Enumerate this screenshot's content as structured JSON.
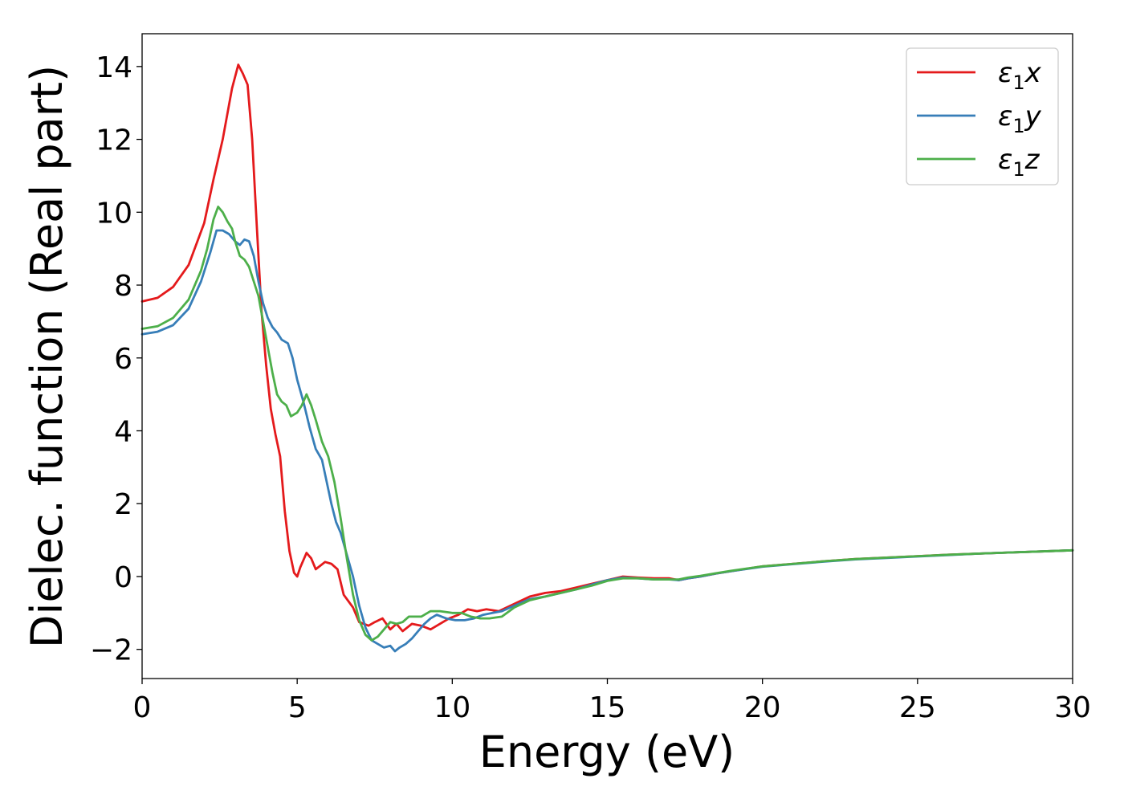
{
  "chart_data": {
    "type": "line",
    "xlabel": "Energy (eV)",
    "ylabel": "Dielec. function (Real part)",
    "xlim": [
      0,
      30
    ],
    "ylim": [
      -2.8,
      14.9
    ],
    "xticks": [
      0,
      5,
      10,
      15,
      20,
      25,
      30
    ],
    "yticks": [
      -2,
      0,
      2,
      4,
      6,
      8,
      10,
      12,
      14
    ],
    "grid": false,
    "legend_position": "top-right",
    "series": [
      {
        "name": "ε1x",
        "legend": {
          "base": "ε",
          "sub": "1",
          "suffix": "x"
        },
        "color": "#e41a1c",
        "points": [
          [
            0,
            7.55
          ],
          [
            0.5,
            7.65
          ],
          [
            1.0,
            7.95
          ],
          [
            1.5,
            8.55
          ],
          [
            2.0,
            9.7
          ],
          [
            2.3,
            10.9
          ],
          [
            2.6,
            12.0
          ],
          [
            2.9,
            13.4
          ],
          [
            3.1,
            14.05
          ],
          [
            3.25,
            13.8
          ],
          [
            3.4,
            13.5
          ],
          [
            3.55,
            12.0
          ],
          [
            3.7,
            9.6
          ],
          [
            3.85,
            7.3
          ],
          [
            4.0,
            5.8
          ],
          [
            4.15,
            4.6
          ],
          [
            4.3,
            3.9
          ],
          [
            4.45,
            3.3
          ],
          [
            4.6,
            1.8
          ],
          [
            4.75,
            0.7
          ],
          [
            4.9,
            0.1
          ],
          [
            5.0,
            0.0
          ],
          [
            5.1,
            0.25
          ],
          [
            5.3,
            0.65
          ],
          [
            5.45,
            0.5
          ],
          [
            5.6,
            0.2
          ],
          [
            5.75,
            0.3
          ],
          [
            5.9,
            0.4
          ],
          [
            6.1,
            0.35
          ],
          [
            6.3,
            0.2
          ],
          [
            6.5,
            -0.5
          ],
          [
            6.8,
            -0.85
          ],
          [
            7.0,
            -1.25
          ],
          [
            7.3,
            -1.35
          ],
          [
            7.5,
            -1.25
          ],
          [
            7.75,
            -1.15
          ],
          [
            8.0,
            -1.45
          ],
          [
            8.2,
            -1.3
          ],
          [
            8.4,
            -1.5
          ],
          [
            8.7,
            -1.3
          ],
          [
            9.0,
            -1.35
          ],
          [
            9.3,
            -1.45
          ],
          [
            9.6,
            -1.3
          ],
          [
            9.9,
            -1.15
          ],
          [
            10.2,
            -1.05
          ],
          [
            10.5,
            -0.9
          ],
          [
            10.8,
            -0.95
          ],
          [
            11.1,
            -0.9
          ],
          [
            11.5,
            -0.95
          ],
          [
            12.0,
            -0.75
          ],
          [
            12.5,
            -0.55
          ],
          [
            13.0,
            -0.45
          ],
          [
            13.5,
            -0.4
          ],
          [
            14.0,
            -0.3
          ],
          [
            14.5,
            -0.2
          ],
          [
            15.0,
            -0.1
          ],
          [
            15.5,
            0.0
          ],
          [
            16.0,
            -0.03
          ],
          [
            16.5,
            -0.05
          ],
          [
            17.0,
            -0.05
          ],
          [
            17.3,
            -0.1
          ],
          [
            17.6,
            -0.05
          ],
          [
            18.0,
            0.0
          ],
          [
            18.5,
            0.08
          ],
          [
            19.0,
            0.15
          ],
          [
            20.0,
            0.28
          ],
          [
            21.0,
            0.35
          ],
          [
            22.0,
            0.42
          ],
          [
            23.0,
            0.48
          ],
          [
            24.0,
            0.52
          ],
          [
            25.0,
            0.56
          ],
          [
            26.0,
            0.6
          ],
          [
            27.0,
            0.63
          ],
          [
            28.0,
            0.66
          ],
          [
            29.0,
            0.69
          ],
          [
            30.0,
            0.72
          ]
        ]
      },
      {
        "name": "ε1y",
        "legend": {
          "base": "ε",
          "sub": "1",
          "suffix": "y"
        },
        "color": "#377eb8",
        "points": [
          [
            0,
            6.65
          ],
          [
            0.5,
            6.72
          ],
          [
            1.0,
            6.9
          ],
          [
            1.5,
            7.35
          ],
          [
            1.9,
            8.1
          ],
          [
            2.2,
            8.9
          ],
          [
            2.4,
            9.5
          ],
          [
            2.6,
            9.5
          ],
          [
            2.8,
            9.4
          ],
          [
            3.0,
            9.2
          ],
          [
            3.15,
            9.1
          ],
          [
            3.3,
            9.25
          ],
          [
            3.45,
            9.2
          ],
          [
            3.6,
            8.8
          ],
          [
            3.75,
            8.1
          ],
          [
            3.9,
            7.5
          ],
          [
            4.05,
            7.1
          ],
          [
            4.2,
            6.85
          ],
          [
            4.35,
            6.7
          ],
          [
            4.5,
            6.5
          ],
          [
            4.7,
            6.4
          ],
          [
            4.85,
            6.0
          ],
          [
            5.0,
            5.4
          ],
          [
            5.2,
            4.8
          ],
          [
            5.4,
            4.1
          ],
          [
            5.6,
            3.5
          ],
          [
            5.8,
            3.2
          ],
          [
            5.95,
            2.6
          ],
          [
            6.1,
            2.0
          ],
          [
            6.25,
            1.5
          ],
          [
            6.4,
            1.2
          ],
          [
            6.6,
            0.6
          ],
          [
            6.8,
            0.0
          ],
          [
            7.0,
            -0.8
          ],
          [
            7.2,
            -1.4
          ],
          [
            7.4,
            -1.75
          ],
          [
            7.6,
            -1.85
          ],
          [
            7.8,
            -1.95
          ],
          [
            8.0,
            -1.9
          ],
          [
            8.15,
            -2.05
          ],
          [
            8.3,
            -1.95
          ],
          [
            8.5,
            -1.85
          ],
          [
            8.7,
            -1.7
          ],
          [
            8.9,
            -1.5
          ],
          [
            9.1,
            -1.3
          ],
          [
            9.3,
            -1.15
          ],
          [
            9.5,
            -1.05
          ],
          [
            9.8,
            -1.15
          ],
          [
            10.1,
            -1.2
          ],
          [
            10.4,
            -1.2
          ],
          [
            10.7,
            -1.15
          ],
          [
            11.0,
            -1.05
          ],
          [
            11.3,
            -1.0
          ],
          [
            11.6,
            -0.95
          ],
          [
            12.0,
            -0.8
          ],
          [
            12.5,
            -0.62
          ],
          [
            13.0,
            -0.55
          ],
          [
            13.5,
            -0.45
          ],
          [
            14.0,
            -0.35
          ],
          [
            14.5,
            -0.22
          ],
          [
            15.0,
            -0.1
          ],
          [
            15.5,
            -0.03
          ],
          [
            16.0,
            -0.05
          ],
          [
            16.5,
            -0.08
          ],
          [
            17.0,
            -0.08
          ],
          [
            17.3,
            -0.1
          ],
          [
            17.6,
            -0.05
          ],
          [
            18.0,
            0.0
          ],
          [
            18.5,
            0.08
          ],
          [
            19.0,
            0.15
          ],
          [
            20.0,
            0.27
          ],
          [
            21.0,
            0.34
          ],
          [
            22.0,
            0.41
          ],
          [
            23.0,
            0.47
          ],
          [
            24.0,
            0.51
          ],
          [
            25.0,
            0.55
          ],
          [
            26.0,
            0.59
          ],
          [
            27.0,
            0.63
          ],
          [
            28.0,
            0.66
          ],
          [
            29.0,
            0.69
          ],
          [
            30.0,
            0.72
          ]
        ]
      },
      {
        "name": "ε1z",
        "legend": {
          "base": "ε",
          "sub": "1",
          "suffix": "z"
        },
        "color": "#4daf4a",
        "points": [
          [
            0,
            6.8
          ],
          [
            0.5,
            6.87
          ],
          [
            1.0,
            7.1
          ],
          [
            1.5,
            7.6
          ],
          [
            1.9,
            8.4
          ],
          [
            2.1,
            9.0
          ],
          [
            2.3,
            9.8
          ],
          [
            2.45,
            10.15
          ],
          [
            2.6,
            10.0
          ],
          [
            2.75,
            9.75
          ],
          [
            2.9,
            9.55
          ],
          [
            3.0,
            9.2
          ],
          [
            3.15,
            8.8
          ],
          [
            3.3,
            8.7
          ],
          [
            3.45,
            8.5
          ],
          [
            3.6,
            8.1
          ],
          [
            3.75,
            7.7
          ],
          [
            3.9,
            7.0
          ],
          [
            4.05,
            6.3
          ],
          [
            4.2,
            5.6
          ],
          [
            4.35,
            5.0
          ],
          [
            4.5,
            4.8
          ],
          [
            4.65,
            4.7
          ],
          [
            4.8,
            4.4
          ],
          [
            5.0,
            4.5
          ],
          [
            5.15,
            4.7
          ],
          [
            5.3,
            5.0
          ],
          [
            5.45,
            4.7
          ],
          [
            5.6,
            4.3
          ],
          [
            5.8,
            3.7
          ],
          [
            6.0,
            3.3
          ],
          [
            6.2,
            2.6
          ],
          [
            6.4,
            1.6
          ],
          [
            6.6,
            0.5
          ],
          [
            6.8,
            -0.5
          ],
          [
            7.0,
            -1.2
          ],
          [
            7.2,
            -1.6
          ],
          [
            7.4,
            -1.75
          ],
          [
            7.6,
            -1.65
          ],
          [
            7.8,
            -1.45
          ],
          [
            8.0,
            -1.25
          ],
          [
            8.2,
            -1.3
          ],
          [
            8.4,
            -1.25
          ],
          [
            8.6,
            -1.1
          ],
          [
            8.8,
            -1.1
          ],
          [
            9.0,
            -1.1
          ],
          [
            9.3,
            -0.95
          ],
          [
            9.6,
            -0.95
          ],
          [
            10.0,
            -1.0
          ],
          [
            10.3,
            -1.0
          ],
          [
            10.6,
            -1.1
          ],
          [
            10.9,
            -1.15
          ],
          [
            11.2,
            -1.15
          ],
          [
            11.6,
            -1.1
          ],
          [
            12.0,
            -0.85
          ],
          [
            12.5,
            -0.65
          ],
          [
            13.0,
            -0.55
          ],
          [
            13.5,
            -0.45
          ],
          [
            14.0,
            -0.35
          ],
          [
            14.5,
            -0.25
          ],
          [
            15.0,
            -0.12
          ],
          [
            15.5,
            -0.05
          ],
          [
            16.0,
            -0.05
          ],
          [
            16.5,
            -0.08
          ],
          [
            17.0,
            -0.08
          ],
          [
            17.3,
            -0.08
          ],
          [
            17.6,
            -0.03
          ],
          [
            18.0,
            0.02
          ],
          [
            18.5,
            0.09
          ],
          [
            19.0,
            0.16
          ],
          [
            20.0,
            0.28
          ],
          [
            21.0,
            0.35
          ],
          [
            22.0,
            0.42
          ],
          [
            23.0,
            0.48
          ],
          [
            24.0,
            0.52
          ],
          [
            25.0,
            0.56
          ],
          [
            26.0,
            0.6
          ],
          [
            27.0,
            0.63
          ],
          [
            28.0,
            0.66
          ],
          [
            29.0,
            0.69
          ],
          [
            30.0,
            0.72
          ]
        ]
      }
    ]
  }
}
